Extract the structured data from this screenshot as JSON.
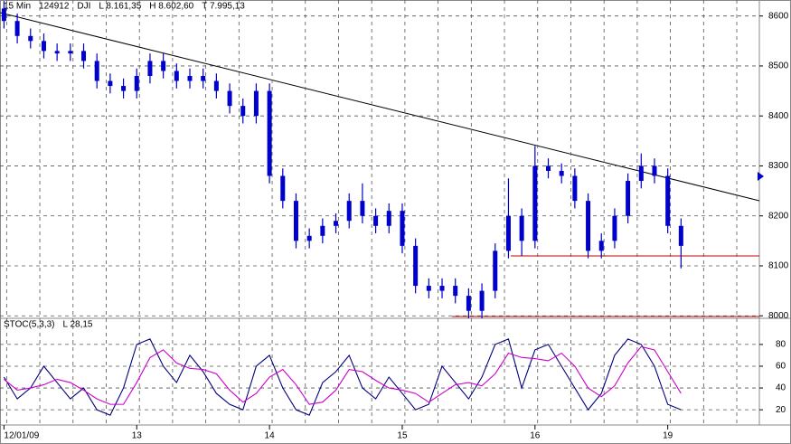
{
  "chart_data": [
    {
      "type": "candlestick",
      "info": [
        "15 Min",
        "124912",
        "DJI",
        "L 8.161,35",
        "H 8.602,60",
        "T 7.995,13"
      ],
      "x": [
        0,
        1,
        2,
        3,
        4,
        5,
        6,
        7,
        8,
        9,
        10,
        11,
        12,
        13,
        14,
        15,
        16,
        17,
        18,
        19,
        20,
        21,
        22,
        23,
        24,
        25,
        26,
        27,
        28,
        29,
        30,
        31,
        32,
        33,
        34,
        35,
        36,
        37,
        38,
        39,
        40,
        41,
        42,
        43,
        44,
        45,
        46,
        47,
        48,
        49,
        50,
        51
      ],
      "open": [
        8615,
        8590,
        8560,
        8550,
        8530,
        8525,
        8530,
        8510,
        8470,
        8460,
        8450,
        8480,
        8510,
        8490,
        8470,
        8480,
        8470,
        8450,
        8420,
        8400,
        8450,
        8280,
        8230,
        8150,
        8160,
        8180,
        8190,
        8230,
        8200,
        8180,
        8210,
        8140,
        8060,
        8050,
        8060,
        8040,
        8010,
        8050,
        8130,
        8200,
        8150,
        8300,
        8290,
        8280,
        8230,
        8130,
        8150,
        8200,
        8270,
        8300,
        8280,
        8180
      ],
      "high": [
        8630,
        8605,
        8575,
        8565,
        8545,
        8545,
        8545,
        8525,
        8485,
        8475,
        8495,
        8525,
        8525,
        8505,
        8495,
        8495,
        8485,
        8465,
        8435,
        8465,
        8465,
        8295,
        8245,
        8175,
        8195,
        8205,
        8245,
        8265,
        8215,
        8225,
        8225,
        8155,
        8075,
        8075,
        8075,
        8055,
        8065,
        8145,
        8275,
        8215,
        8340,
        8315,
        8305,
        8295,
        8245,
        8165,
        8215,
        8285,
        8325,
        8315,
        8295,
        8195
      ],
      "low": [
        8575,
        8545,
        8535,
        8515,
        8510,
        8510,
        8495,
        8455,
        8445,
        8435,
        8435,
        8465,
        8475,
        8455,
        8455,
        8455,
        8435,
        8405,
        8385,
        8385,
        8265,
        8215,
        8135,
        8135,
        8145,
        8165,
        8175,
        8185,
        8165,
        8165,
        8125,
        8045,
        8035,
        8035,
        8025,
        7995,
        7995,
        8035,
        8115,
        8120,
        8135,
        8275,
        8265,
        8215,
        8115,
        8115,
        8135,
        8185,
        8255,
        8265,
        8165,
        8095
      ],
      "close": [
        8590,
        8560,
        8550,
        8530,
        8525,
        8530,
        8510,
        8470,
        8460,
        8450,
        8480,
        8510,
        8490,
        8470,
        8480,
        8470,
        8450,
        8420,
        8400,
        8450,
        8280,
        8230,
        8150,
        8160,
        8180,
        8190,
        8230,
        8200,
        8180,
        8210,
        8140,
        8060,
        8050,
        8060,
        8040,
        8010,
        8050,
        8130,
        8200,
        8150,
        8300,
        8290,
        8280,
        8230,
        8130,
        8150,
        8200,
        8270,
        8300,
        8280,
        8180,
        8140
      ],
      "color": "#0000cc",
      "xlim": [
        -0.3,
        56.9
      ],
      "ylim": [
        7995,
        8632
      ],
      "yticks": [
        8000,
        8100,
        8200,
        8300,
        8400,
        8500,
        8600
      ],
      "xgrid": [
        0.2,
        2.7,
        5.2,
        7.7,
        10.2,
        12.7,
        15.2,
        17.7,
        20.2,
        22.7,
        25.2,
        27.7,
        30.2,
        32.7,
        35.2,
        37.7,
        40.2,
        42.7,
        45.2,
        47.7,
        50.2,
        52.7,
        55.2
      ],
      "grid": true
    },
    {
      "type": "line",
      "info": [
        "STOC(5,3,3)",
        "L 28,15"
      ],
      "x": [
        0,
        1,
        2,
        3,
        4,
        5,
        6,
        7,
        8,
        9,
        10,
        11,
        12,
        13,
        14,
        15,
        16,
        17,
        18,
        19,
        20,
        21,
        22,
        23,
        24,
        25,
        26,
        27,
        28,
        29,
        30,
        31,
        32,
        33,
        34,
        35,
        36,
        37,
        38,
        39,
        40,
        41,
        42,
        43,
        44,
        45,
        46,
        47,
        48,
        49,
        50,
        51
      ],
      "series": [
        {
          "color": "#000080",
          "values": [
            50,
            30,
            40,
            60,
            45,
            30,
            40,
            20,
            15,
            40,
            80,
            85,
            60,
            45,
            70,
            55,
            35,
            25,
            20,
            60,
            70,
            40,
            20,
            15,
            45,
            55,
            70,
            40,
            30,
            50,
            35,
            20,
            25,
            60,
            45,
            30,
            50,
            80,
            85,
            40,
            75,
            80,
            60,
            40,
            20,
            35,
            70,
            85,
            80,
            60,
            25,
            20
          ]
        },
        {
          "color": "#cc00cc",
          "values": [
            48,
            38,
            40,
            43,
            48,
            45,
            38,
            30,
            25,
            25,
            45,
            68,
            75,
            63,
            58,
            57,
            53,
            38,
            27,
            35,
            50,
            57,
            43,
            25,
            27,
            38,
            57,
            55,
            47,
            40,
            38,
            35,
            27,
            35,
            43,
            45,
            42,
            53,
            72,
            68,
            67,
            65,
            72,
            60,
            40,
            32,
            42,
            63,
            78,
            75,
            55,
            35
          ]
        }
      ],
      "xlim": [
        -0.3,
        56.9
      ],
      "ylim": [
        6,
        104
      ],
      "yticks": [
        20,
        40,
        60,
        80
      ],
      "xticks": [
        {
          "value": 0,
          "label": "12/01/09"
        },
        {
          "value": 10,
          "label": "13"
        },
        {
          "value": 20,
          "label": "14"
        },
        {
          "value": 30,
          "label": "15"
        },
        {
          "value": 40,
          "label": "16"
        },
        {
          "value": 50,
          "label": "19"
        }
      ],
      "xgrid": [
        0.2,
        2.7,
        5.2,
        7.7,
        10.2,
        12.7,
        15.2,
        17.7,
        20.2,
        22.7,
        25.2,
        27.7,
        30.2,
        32.7,
        35.2,
        37.7,
        40.2,
        42.7,
        45.2,
        47.7,
        50.2,
        52.7,
        55.2
      ],
      "grid": true
    }
  ]
}
